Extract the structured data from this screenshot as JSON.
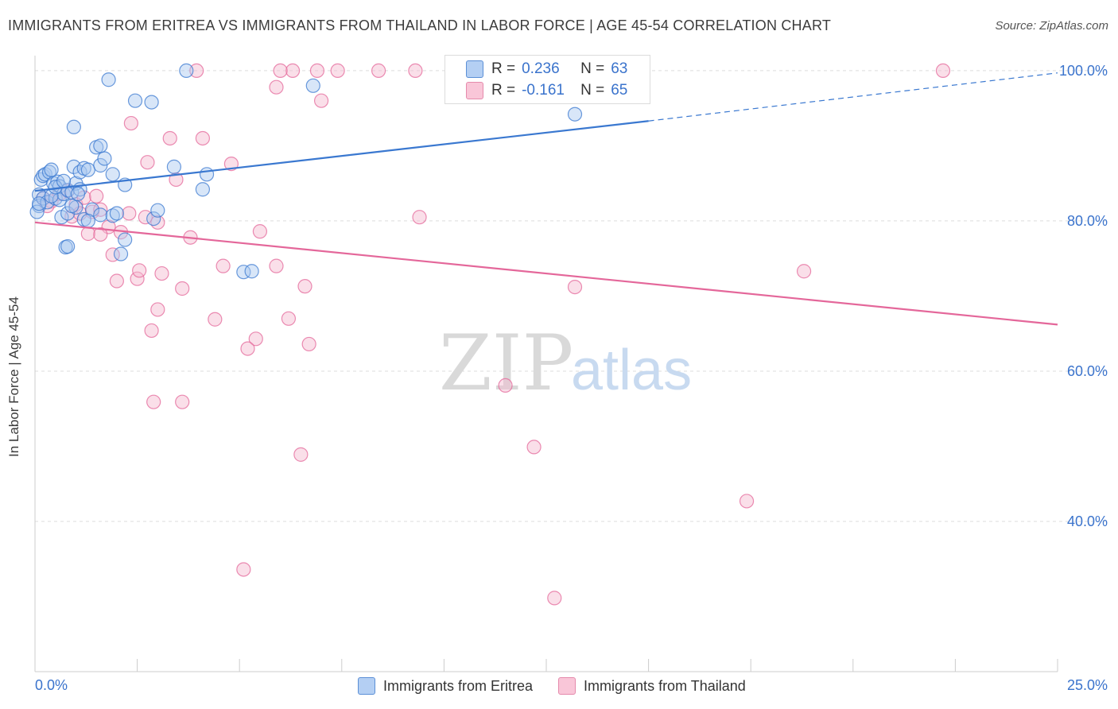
{
  "title": "IMMIGRANTS FROM ERITREA VS IMMIGRANTS FROM THAILAND IN LABOR FORCE | AGE 45-54 CORRELATION CHART",
  "source": "Source: ZipAtlas.com",
  "watermark": {
    "zip": "ZIP",
    "atlas": "atlas"
  },
  "legend": {
    "r_label": "R =",
    "n_label": "N =",
    "rows": [
      {
        "r": "0.236",
        "n": "63"
      },
      {
        "r": "-0.161",
        "n": "65"
      }
    ]
  },
  "colors": {
    "eritrea": "#3a78d0",
    "eritrea_fill": "#a9c8f0",
    "thailand": "#e4679a",
    "thailand_fill": "#f5b9cf",
    "axis_label": "#3a73cc",
    "grid": "#dddddd"
  },
  "chart_data": {
    "type": "scatter",
    "title": "IMMIGRANTS FROM ERITREA VS IMMIGRANTS FROM THAILAND IN LABOR FORCE | AGE 45-54 CORRELATION CHART",
    "xlabel": "",
    "ylabel": "In Labor Force | Age 45-54",
    "xlim": [
      0,
      25
    ],
    "ylim": [
      20,
      102
    ],
    "x_tick_labels": [
      "0.0%",
      "25.0%"
    ],
    "y_ticks": [
      40,
      60,
      80,
      100
    ],
    "y_tick_labels": [
      "40.0%",
      "60.0%",
      "80.0%",
      "100.0%"
    ],
    "grid": true,
    "legend_position": "top-center",
    "series": [
      {
        "name": "Immigrants from Eritrea",
        "color": "#3a78d0",
        "r": 0.236,
        "n": 63,
        "trend": {
          "x0": 0,
          "y0": 84.0,
          "x1": 15,
          "y1": 93.3,
          "dash_to_x": 25,
          "dash_to_y": 99.7
        },
        "points": [
          [
            0.1,
            83.5
          ],
          [
            0.15,
            85.5
          ],
          [
            0.2,
            86.0
          ],
          [
            0.25,
            86.2
          ],
          [
            0.35,
            86.5
          ],
          [
            0.4,
            86.8
          ],
          [
            0.45,
            85.0
          ],
          [
            0.55,
            85.2
          ],
          [
            0.6,
            84.6
          ],
          [
            0.1,
            82.0
          ],
          [
            0.2,
            83.0
          ],
          [
            0.3,
            82.5
          ],
          [
            0.5,
            83.0
          ],
          [
            0.6,
            82.8
          ],
          [
            0.7,
            83.6
          ],
          [
            0.8,
            84.1
          ],
          [
            0.9,
            83.8
          ],
          [
            1.0,
            85.0
          ],
          [
            1.1,
            84.2
          ],
          [
            0.65,
            80.5
          ],
          [
            0.8,
            81.0
          ],
          [
            1.0,
            81.8
          ],
          [
            1.2,
            80.2
          ],
          [
            1.4,
            81.5
          ],
          [
            1.6,
            80.8
          ],
          [
            1.9,
            80.7
          ],
          [
            0.75,
            76.5
          ],
          [
            0.8,
            76.6
          ],
          [
            2.1,
            75.6
          ],
          [
            2.2,
            77.5
          ],
          [
            0.95,
            87.2
          ],
          [
            1.1,
            86.5
          ],
          [
            1.2,
            87.0
          ],
          [
            1.3,
            86.8
          ],
          [
            1.5,
            89.8
          ],
          [
            1.6,
            87.4
          ],
          [
            1.7,
            88.3
          ],
          [
            1.9,
            86.2
          ],
          [
            2.2,
            84.8
          ],
          [
            1.6,
            90.0
          ],
          [
            0.95,
            92.5
          ],
          [
            1.8,
            98.8
          ],
          [
            2.45,
            96.0
          ],
          [
            2.85,
            95.8
          ],
          [
            3.4,
            87.2
          ],
          [
            4.2,
            86.2
          ],
          [
            4.1,
            84.2
          ],
          [
            2.9,
            80.3
          ],
          [
            3.0,
            81.4
          ],
          [
            5.1,
            73.2
          ],
          [
            5.3,
            73.3
          ],
          [
            3.7,
            100.0
          ],
          [
            6.8,
            98.0
          ],
          [
            13.2,
            94.2
          ],
          [
            0.05,
            81.2
          ],
          [
            0.1,
            82.3
          ],
          [
            0.4,
            83.3
          ],
          [
            1.3,
            80.0
          ],
          [
            0.5,
            84.5
          ],
          [
            0.7,
            85.3
          ],
          [
            0.9,
            82.0
          ],
          [
            2.0,
            81.0
          ],
          [
            1.05,
            83.6
          ]
        ]
      },
      {
        "name": "Immigrants from Thailand",
        "color": "#e4679a",
        "r": -0.161,
        "n": 65,
        "trend": {
          "x0": 0,
          "y0": 79.8,
          "x1": 25,
          "y1": 66.2
        },
        "points": [
          [
            0.2,
            83.0
          ],
          [
            0.4,
            82.6
          ],
          [
            0.6,
            83.6
          ],
          [
            0.8,
            84.0
          ],
          [
            1.0,
            82.2
          ],
          [
            1.2,
            83.1
          ],
          [
            1.4,
            81.2
          ],
          [
            0.9,
            80.6
          ],
          [
            1.1,
            81.0
          ],
          [
            1.6,
            81.5
          ],
          [
            1.8,
            79.2
          ],
          [
            2.3,
            81.0
          ],
          [
            2.7,
            80.5
          ],
          [
            3.0,
            79.8
          ],
          [
            1.3,
            78.3
          ],
          [
            1.6,
            78.2
          ],
          [
            2.1,
            78.5
          ],
          [
            1.9,
            75.5
          ],
          [
            2.5,
            72.3
          ],
          [
            2.0,
            72.0
          ],
          [
            2.55,
            73.4
          ],
          [
            3.1,
            73.0
          ],
          [
            3.6,
            71.0
          ],
          [
            3.0,
            68.2
          ],
          [
            2.85,
            65.4
          ],
          [
            3.8,
            77.8
          ],
          [
            4.6,
            74.0
          ],
          [
            5.5,
            78.6
          ],
          [
            5.9,
            74.0
          ],
          [
            6.6,
            71.3
          ],
          [
            4.4,
            66.9
          ],
          [
            6.2,
            67.0
          ],
          [
            5.4,
            64.3
          ],
          [
            5.2,
            63.0
          ],
          [
            6.7,
            63.6
          ],
          [
            2.9,
            55.9
          ],
          [
            3.6,
            55.9
          ],
          [
            6.5,
            48.9
          ],
          [
            12.2,
            49.9
          ],
          [
            11.5,
            58.1
          ],
          [
            5.1,
            33.6
          ],
          [
            12.7,
            29.8
          ],
          [
            17.4,
            42.7
          ],
          [
            13.2,
            71.2
          ],
          [
            18.8,
            73.3
          ],
          [
            9.4,
            80.5
          ],
          [
            2.35,
            93.0
          ],
          [
            3.3,
            91.0
          ],
          [
            4.1,
            91.0
          ],
          [
            2.75,
            87.8
          ],
          [
            3.45,
            85.5
          ],
          [
            4.8,
            87.6
          ],
          [
            5.9,
            97.8
          ],
          [
            6.3,
            100.0
          ],
          [
            6.9,
            100.0
          ],
          [
            7.4,
            100.0
          ],
          [
            8.4,
            100.0
          ],
          [
            9.3,
            100.0
          ],
          [
            11.3,
            100.0
          ],
          [
            22.2,
            100.0
          ],
          [
            3.95,
            100.0
          ],
          [
            7.0,
            96.0
          ],
          [
            6.0,
            100.0
          ],
          [
            0.3,
            82.0
          ],
          [
            1.5,
            83.3
          ]
        ]
      }
    ]
  },
  "bottom_legend": [
    "Immigrants from Eritrea",
    "Immigrants from Thailand"
  ]
}
